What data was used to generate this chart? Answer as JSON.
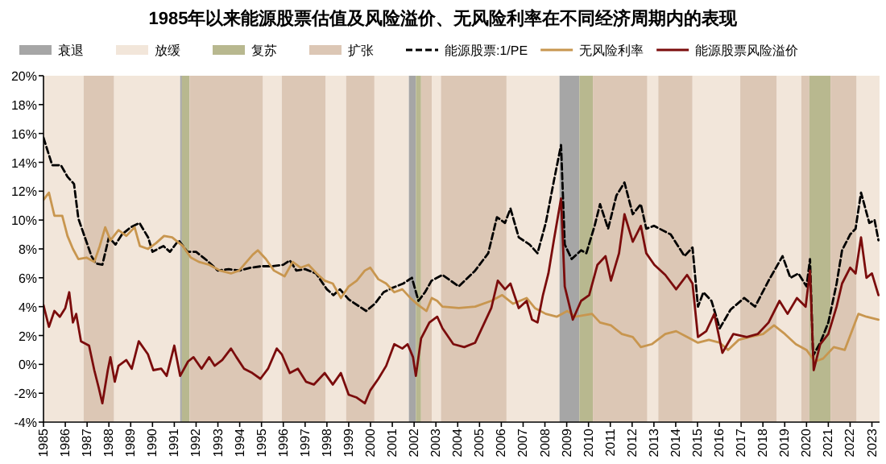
{
  "chart_data": {
    "type": "line",
    "title": "1985年以来能源股票估值及风险溢价、无风险利率在不同经济周期内的表现",
    "xlim": [
      1985,
      2023.35
    ],
    "xticks": [
      1985,
      1986,
      1987,
      1988,
      1989,
      1990,
      1991,
      1992,
      1993,
      1994,
      1995,
      1996,
      1997,
      1998,
      1999,
      2000,
      2001,
      2002,
      2003,
      2004,
      2005,
      2006,
      2007,
      2008,
      2009,
      2010,
      2011,
      2012,
      2013,
      2014,
      2015,
      2016,
      2017,
      2018,
      2019,
      2020,
      2021,
      2022,
      2023
    ],
    "ylim": [
      -4,
      20
    ],
    "yticks": [
      {
        "value": -4,
        "label": "-4%"
      },
      {
        "value": -2,
        "label": "-2%"
      },
      {
        "value": 0,
        "label": "0%"
      },
      {
        "value": 2,
        "label": "2%"
      },
      {
        "value": 4,
        "label": "4%"
      },
      {
        "value": 6,
        "label": "6%"
      },
      {
        "value": 8,
        "label": "8%"
      },
      {
        "value": 10,
        "label": "10%"
      },
      {
        "value": 12,
        "label": "12%"
      },
      {
        "value": 14,
        "label": "14%"
      },
      {
        "value": 16,
        "label": "16%"
      },
      {
        "value": 18,
        "label": "18%"
      },
      {
        "value": 20,
        "label": "20%"
      }
    ],
    "legend": "top",
    "grid": false,
    "bands": [
      {
        "axis": "x",
        "from": 2008.66,
        "to": 2009.58,
        "label": "衰退",
        "color": "#a6a6a6"
      },
      {
        "axis": "x",
        "from": 1985,
        "to": 1986.84,
        "label": "放缓",
        "color": "#f2e6da"
      },
      {
        "axis": "x",
        "from": 2009.58,
        "to": 2010.2,
        "label": "复苏",
        "color": "#b8b88f"
      },
      {
        "axis": "x",
        "from": 1986.84,
        "to": 1988.24,
        "label": "扩张",
        "color": "#dcc7b5"
      },
      {
        "axis": "x",
        "from": 1988.24,
        "to": 1991.27,
        "color": "#f2e6da"
      },
      {
        "axis": "x",
        "from": 1991.27,
        "to": 1991.35,
        "color": "#a6a6a6"
      },
      {
        "axis": "x",
        "from": 1991.35,
        "to": 1991.7,
        "color": "#b8b88f"
      },
      {
        "axis": "x",
        "from": 1991.7,
        "to": 1995.07,
        "color": "#dcc7b5"
      },
      {
        "axis": "x",
        "from": 1995.07,
        "to": 1995.93,
        "color": "#f2e6da"
      },
      {
        "axis": "x",
        "from": 1995.93,
        "to": 1997.95,
        "color": "#dcc7b5"
      },
      {
        "axis": "x",
        "from": 1997.95,
        "to": 1998.88,
        "color": "#f2e6da"
      },
      {
        "axis": "x",
        "from": 1998.88,
        "to": 2000.18,
        "color": "#dcc7b5"
      },
      {
        "axis": "x",
        "from": 2000.18,
        "to": 2001.76,
        "color": "#f2e6da"
      },
      {
        "axis": "x",
        "from": 2001.76,
        "to": 2002.08,
        "color": "#a6a6a6"
      },
      {
        "axis": "x",
        "from": 2002.08,
        "to": 2002.32,
        "color": "#b8b88f"
      },
      {
        "axis": "x",
        "from": 2002.32,
        "to": 2002.81,
        "color": "#dcc7b5"
      },
      {
        "axis": "x",
        "from": 2002.81,
        "to": 2003.23,
        "color": "#f2e6da"
      },
      {
        "axis": "x",
        "from": 2003.23,
        "to": 2006.24,
        "color": "#dcc7b5"
      },
      {
        "axis": "x",
        "from": 2006.24,
        "to": 2008.66,
        "color": "#f2e6da"
      },
      {
        "axis": "x",
        "from": 2010.2,
        "to": 2012.7,
        "color": "#dcc7b5"
      },
      {
        "axis": "x",
        "from": 2012.7,
        "to": 2013.2,
        "color": "#f2e6da"
      },
      {
        "axis": "x",
        "from": 2013.2,
        "to": 2014.77,
        "color": "#dcc7b5"
      },
      {
        "axis": "x",
        "from": 2014.77,
        "to": 2016.96,
        "color": "#f2e6da"
      },
      {
        "axis": "x",
        "from": 2016.96,
        "to": 2018.64,
        "color": "#dcc7b5"
      },
      {
        "axis": "x",
        "from": 2018.64,
        "to": 2019.76,
        "color": "#f2e6da"
      },
      {
        "axis": "x",
        "from": 2019.76,
        "to": 2020.13,
        "color": "#dcc7b5"
      },
      {
        "axis": "x",
        "from": 2020.13,
        "to": 2021.1,
        "color": "#b8b88f"
      },
      {
        "axis": "x",
        "from": 2021.1,
        "to": 2022.3,
        "color": "#dcc7b5"
      },
      {
        "axis": "x",
        "from": 2022.3,
        "to": 2023.35,
        "color": "#f2e6da"
      }
    ],
    "series": [
      {
        "name": "能源股票:1/PE",
        "color": "#000000",
        "line_style": "dashed",
        "x": [
          1985.0,
          1985.4,
          1985.8,
          1986.1,
          1986.4,
          1986.6,
          1986.9,
          1987.2,
          1987.4,
          1987.7,
          1988.0,
          1988.3,
          1988.6,
          1989.0,
          1989.4,
          1989.8,
          1990.0,
          1990.5,
          1990.8,
          1991.2,
          1991.6,
          1992.0,
          1992.5,
          1993.0,
          1993.5,
          1994.0,
          1994.5,
          1995.0,
          1995.5,
          1996.0,
          1996.3,
          1996.6,
          1997.0,
          1997.5,
          1998.0,
          1998.3,
          1998.6,
          1999.0,
          1999.5,
          1999.8,
          2000.2,
          2000.6,
          2001.0,
          2001.5,
          2001.9,
          2002.2,
          2002.5,
          2002.8,
          2003.3,
          2004.05,
          2004.8,
          2005.4,
          2005.8,
          2006.17,
          2006.42,
          2006.8,
          2007.3,
          2007.66,
          2008.04,
          2008.41,
          2008.74,
          2008.91,
          2009.23,
          2009.66,
          2009.9,
          2010.28,
          2010.53,
          2010.9,
          2011.28,
          2011.65,
          2012.03,
          2012.4,
          2012.65,
          2013.0,
          2013.77,
          2014.4,
          2014.77,
          2015.02,
          2015.27,
          2015.64,
          2016.02,
          2016.52,
          2017.14,
          2017.64,
          2018.26,
          2018.9,
          2019.26,
          2019.63,
          2020.0,
          2020.16,
          2020.3,
          2020.63,
          2021.0,
          2021.38,
          2021.63,
          2022.0,
          2022.25,
          2022.5,
          2022.88,
          2023.12,
          2023.3
        ],
        "values": [
          15.7,
          13.8,
          13.8,
          13.0,
          12.5,
          10.1,
          8.8,
          7.5,
          7.0,
          6.9,
          8.8,
          8.3,
          9.0,
          9.5,
          9.8,
          8.8,
          7.8,
          8.2,
          7.8,
          8.6,
          7.8,
          7.8,
          7.2,
          6.5,
          6.6,
          6.5,
          6.7,
          6.8,
          6.8,
          6.9,
          7.2,
          6.5,
          6.6,
          6.3,
          5.2,
          4.8,
          5.2,
          4.5,
          4.0,
          3.7,
          4.2,
          5.0,
          5.3,
          5.6,
          6.0,
          4.4,
          5.0,
          5.8,
          6.2,
          5.4,
          6.5,
          7.7,
          10.2,
          9.8,
          10.8,
          8.8,
          8.3,
          7.7,
          9.8,
          12.7,
          15.2,
          8.3,
          7.3,
          7.9,
          7.7,
          9.6,
          11.1,
          9.4,
          11.7,
          12.6,
          10.4,
          11.1,
          9.4,
          9.6,
          9.0,
          7.5,
          8.1,
          4.0,
          5.0,
          4.4,
          2.5,
          3.8,
          4.6,
          4.0,
          5.8,
          7.5,
          6.0,
          6.3,
          5.4,
          7.3,
          0.6,
          1.5,
          2.9,
          5.6,
          7.9,
          9.0,
          9.4,
          11.9,
          9.8,
          10.0,
          8.6
        ]
      },
      {
        "name": "无风险利率",
        "color": "#c8964f",
        "line_style": "solid",
        "x": [
          1985.0,
          1985.25,
          1985.5,
          1985.86,
          1986.1,
          1986.35,
          1986.6,
          1986.97,
          1987.33,
          1987.58,
          1987.83,
          1988.07,
          1988.44,
          1988.8,
          1989.18,
          1989.42,
          1989.79,
          1990.16,
          1990.53,
          1990.9,
          1991.39,
          1991.76,
          1992.13,
          1992.6,
          1993.1,
          1993.6,
          1993.97,
          1994.2,
          1994.6,
          1994.83,
          1995.2,
          1995.57,
          1996.06,
          1996.43,
          1996.8,
          1997.16,
          1997.53,
          1997.9,
          1998.27,
          1998.64,
          1999.0,
          1999.37,
          1999.74,
          1999.99,
          2000.36,
          2000.72,
          2001.09,
          2001.46,
          2001.83,
          2002.2,
          2002.57,
          2002.81,
          2003.06,
          2003.3,
          2004.05,
          2004.8,
          2005.54,
          2006.04,
          2006.54,
          2007.16,
          2007.54,
          2008.04,
          2008.54,
          2009.03,
          2009.4,
          2009.78,
          2010.16,
          2010.53,
          2011.03,
          2011.53,
          2012.03,
          2012.4,
          2012.9,
          2013.52,
          2014.02,
          2014.52,
          2015.02,
          2015.52,
          2016.02,
          2016.4,
          2016.89,
          2017.39,
          2018.01,
          2018.51,
          2019.01,
          2019.51,
          2020.0,
          2020.38,
          2020.76,
          2021.25,
          2021.75,
          2022.13,
          2022.38,
          2022.75,
          2023.3
        ],
        "values": [
          11.4,
          11.9,
          10.3,
          10.3,
          8.9,
          8.0,
          7.3,
          7.4,
          7.1,
          8.2,
          9.5,
          8.6,
          9.3,
          8.9,
          9.5,
          8.2,
          8.0,
          8.4,
          8.9,
          8.8,
          8.2,
          7.4,
          7.1,
          6.9,
          6.5,
          6.3,
          6.5,
          6.9,
          7.6,
          7.9,
          7.3,
          6.5,
          6.1,
          7.1,
          6.7,
          6.9,
          6.3,
          5.8,
          5.6,
          4.6,
          5.4,
          5.8,
          6.5,
          6.7,
          5.9,
          5.6,
          5.0,
          5.2,
          4.6,
          4.1,
          3.7,
          4.6,
          4.4,
          4.0,
          3.9,
          4.0,
          4.4,
          4.8,
          4.2,
          4.6,
          3.9,
          3.5,
          3.3,
          3.7,
          3.3,
          3.4,
          3.5,
          2.9,
          2.7,
          2.1,
          1.9,
          1.2,
          1.4,
          2.1,
          2.3,
          1.9,
          1.5,
          1.7,
          1.5,
          1.0,
          1.7,
          1.9,
          2.1,
          2.7,
          2.1,
          1.4,
          1.0,
          0.2,
          0.4,
          1.2,
          1.0,
          2.5,
          3.5,
          3.3,
          3.1
        ]
      },
      {
        "name": "能源股票风险溢价",
        "color": "#7b0c0c",
        "line_style": "solid",
        "x": [
          1985.0,
          1985.25,
          1985.5,
          1985.75,
          1986.0,
          1986.18,
          1986.35,
          1986.5,
          1986.72,
          1987.09,
          1987.33,
          1987.53,
          1987.7,
          1987.95,
          1988.07,
          1988.27,
          1988.44,
          1988.8,
          1989.05,
          1989.37,
          1989.79,
          1990.04,
          1990.4,
          1990.65,
          1991.0,
          1991.27,
          1991.63,
          1991.88,
          1992.25,
          1992.6,
          1992.85,
          1993.2,
          1993.6,
          1993.85,
          1994.2,
          1994.58,
          1994.95,
          1995.3,
          1995.7,
          1995.93,
          1996.3,
          1996.67,
          1997.04,
          1997.4,
          1997.9,
          1998.27,
          1998.64,
          1999.0,
          1999.37,
          1999.74,
          1999.99,
          2000.36,
          2000.72,
          2001.09,
          2001.46,
          2001.7,
          2001.95,
          2002.08,
          2002.32,
          2002.7,
          2003.06,
          2003.3,
          2003.8,
          2004.3,
          2004.8,
          2005.17,
          2005.54,
          2005.84,
          2006.17,
          2006.42,
          2006.8,
          2007.16,
          2007.41,
          2007.66,
          2007.91,
          2008.16,
          2008.41,
          2008.74,
          2008.91,
          2009.28,
          2009.66,
          2010.03,
          2010.41,
          2010.78,
          2011.03,
          2011.4,
          2011.65,
          2012.03,
          2012.4,
          2012.65,
          2013.02,
          2013.52,
          2014.02,
          2014.52,
          2014.77,
          2015.02,
          2015.4,
          2015.77,
          2016.14,
          2016.64,
          2017.26,
          2017.76,
          2018.26,
          2018.76,
          2019.13,
          2019.56,
          2019.96,
          2020.16,
          2020.33,
          2020.63,
          2021.0,
          2021.38,
          2021.63,
          2022.0,
          2022.25,
          2022.5,
          2022.75,
          2023.0,
          2023.3
        ],
        "values": [
          4.1,
          2.6,
          3.7,
          3.3,
          3.9,
          5.0,
          2.9,
          3.5,
          1.6,
          1.3,
          -0.4,
          -1.6,
          -2.7,
          -0.4,
          0.5,
          -1.2,
          -0.1,
          0.3,
          -0.3,
          1.6,
          0.7,
          -0.4,
          -0.3,
          -0.8,
          1.3,
          -0.8,
          0.2,
          0.5,
          -0.3,
          0.5,
          -0.1,
          0.3,
          1.1,
          0.5,
          -0.3,
          -0.6,
          -1.0,
          -0.3,
          1.1,
          0.7,
          -0.6,
          -0.3,
          -1.2,
          -1.4,
          -0.6,
          -1.4,
          -0.6,
          -2.1,
          -2.3,
          -2.7,
          -1.8,
          -1.0,
          -0.1,
          1.4,
          1.1,
          1.4,
          0.5,
          -0.8,
          1.8,
          2.9,
          3.3,
          2.5,
          1.4,
          1.2,
          1.5,
          2.7,
          3.9,
          5.8,
          5.2,
          5.6,
          3.9,
          4.4,
          3.1,
          2.9,
          4.8,
          6.3,
          8.6,
          11.5,
          5.4,
          3.1,
          4.4,
          4.8,
          6.9,
          7.5,
          5.8,
          7.7,
          10.4,
          8.5,
          9.6,
          7.7,
          6.9,
          6.2,
          5.2,
          6.2,
          5.6,
          1.9,
          2.3,
          3.5,
          0.8,
          2.1,
          1.9,
          2.1,
          2.9,
          4.4,
          3.5,
          4.6,
          4.0,
          6.5,
          -0.4,
          1.4,
          2.1,
          4.0,
          5.6,
          6.7,
          6.3,
          8.8,
          6.0,
          6.3,
          4.8
        ]
      }
    ]
  }
}
